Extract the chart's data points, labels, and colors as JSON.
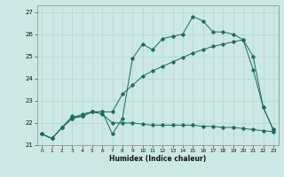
{
  "title": "",
  "xlabel": "Humidex (Indice chaleur)",
  "bg_color": "#cce8e4",
  "grid_color": "#b0d8d0",
  "line_color": "#1a6b5a",
  "xlim": [
    -0.5,
    23.5
  ],
  "ylim": [
    21,
    27.3
  ],
  "xticks": [
    0,
    1,
    2,
    3,
    4,
    5,
    6,
    7,
    8,
    9,
    10,
    11,
    12,
    13,
    14,
    15,
    16,
    17,
    18,
    19,
    20,
    21,
    22,
    23
  ],
  "yticks": [
    21,
    22,
    23,
    24,
    25,
    26,
    27
  ],
  "line1_x": [
    0,
    1,
    2,
    3,
    4,
    5,
    6,
    7,
    8,
    9,
    10,
    11,
    12,
    13,
    14,
    15,
    16,
    17,
    18,
    19,
    20,
    21,
    22,
    23
  ],
  "line1_y": [
    21.5,
    21.3,
    21.8,
    22.3,
    22.3,
    22.5,
    22.5,
    21.5,
    22.2,
    24.9,
    25.55,
    25.3,
    25.8,
    25.9,
    26.0,
    26.8,
    26.6,
    26.1,
    26.1,
    26.0,
    25.75,
    24.4,
    22.7,
    21.7
  ],
  "line2_x": [
    0,
    1,
    2,
    3,
    4,
    5,
    6,
    7,
    8,
    9,
    10,
    11,
    12,
    13,
    14,
    15,
    16,
    17,
    18,
    19,
    20,
    21,
    22,
    23
  ],
  "line2_y": [
    21.5,
    21.3,
    21.8,
    22.2,
    22.4,
    22.5,
    22.5,
    22.5,
    23.3,
    23.7,
    24.1,
    24.35,
    24.55,
    24.75,
    24.95,
    25.15,
    25.3,
    25.45,
    25.55,
    25.65,
    25.75,
    25.0,
    22.7,
    21.7
  ],
  "line3_x": [
    0,
    1,
    2,
    3,
    4,
    5,
    6,
    7,
    8,
    9,
    10,
    11,
    12,
    13,
    14,
    15,
    16,
    17,
    18,
    19,
    20,
    21,
    22,
    23
  ],
  "line3_y": [
    21.5,
    21.3,
    21.8,
    22.2,
    22.3,
    22.5,
    22.4,
    22.0,
    22.0,
    22.0,
    21.95,
    21.9,
    21.9,
    21.9,
    21.9,
    21.9,
    21.85,
    21.85,
    21.8,
    21.8,
    21.75,
    21.7,
    21.65,
    21.6
  ]
}
